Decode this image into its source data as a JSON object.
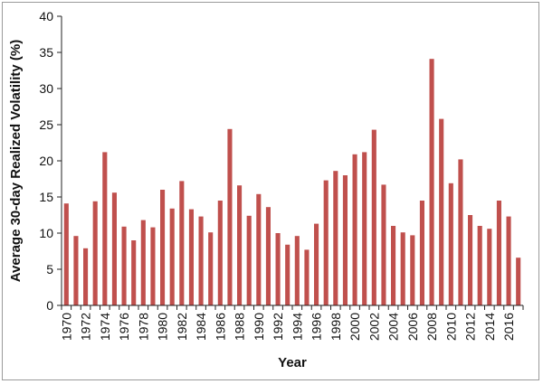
{
  "chart_data": {
    "type": "bar",
    "title": "",
    "xlabel": "Year",
    "ylabel": "Average 30-day Realized Volatility (%)",
    "ylim": [
      0,
      40
    ],
    "yticks": [
      0,
      5,
      10,
      15,
      20,
      25,
      30,
      35,
      40
    ],
    "grid": false,
    "legend": "none",
    "bar_color": "#c0504d",
    "categories": [
      "1970",
      "1971",
      "1972",
      "1973",
      "1974",
      "1975",
      "1976",
      "1977",
      "1978",
      "1979",
      "1980",
      "1981",
      "1982",
      "1983",
      "1984",
      "1985",
      "1986",
      "1987",
      "1988",
      "1989",
      "1990",
      "1991",
      "1992",
      "1993",
      "1994",
      "1995",
      "1996",
      "1997",
      "1998",
      "1999",
      "2000",
      "2001",
      "2002",
      "2003",
      "2004",
      "2005",
      "2006",
      "2007",
      "2008",
      "2009",
      "2010",
      "2011",
      "2012",
      "2013",
      "2014",
      "2015",
      "2016",
      "2017"
    ],
    "xtick_labels": [
      "1970",
      "1972",
      "1974",
      "1976",
      "1978",
      "1980",
      "1982",
      "1984",
      "1986",
      "1988",
      "1990",
      "1992",
      "1994",
      "1996",
      "1998",
      "2000",
      "2002",
      "2004",
      "2006",
      "2008",
      "2010",
      "2012",
      "2014",
      "2016"
    ],
    "values": [
      14.1,
      9.6,
      7.9,
      14.4,
      21.2,
      15.6,
      10.9,
      9.0,
      11.8,
      10.8,
      16.0,
      13.4,
      17.2,
      13.3,
      12.3,
      10.1,
      14.5,
      24.4,
      16.6,
      12.4,
      15.4,
      13.6,
      10.0,
      8.4,
      9.6,
      7.7,
      11.3,
      17.3,
      18.6,
      18.0,
      20.9,
      21.2,
      24.3,
      16.7,
      11.0,
      10.1,
      9.7,
      14.5,
      34.1,
      25.8,
      16.9,
      20.2,
      12.5,
      11.0,
      10.6,
      14.5,
      12.3,
      6.6
    ]
  }
}
